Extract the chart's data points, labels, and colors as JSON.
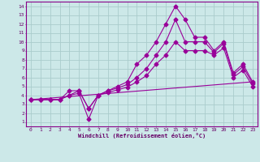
{
  "xlabel": "Windchill (Refroidissement éolien,°C)",
  "ylabel": "",
  "bg_color": "#cce8e8",
  "grid_color": "#aacccc",
  "line_color": "#990099",
  "xlim": [
    -0.5,
    23.5
  ],
  "ylim": [
    0.5,
    14.5
  ],
  "xticks": [
    0,
    1,
    2,
    3,
    4,
    5,
    6,
    7,
    8,
    9,
    10,
    11,
    12,
    13,
    14,
    15,
    16,
    17,
    18,
    19,
    20,
    21,
    22,
    23
  ],
  "yticks": [
    1,
    2,
    3,
    4,
    5,
    6,
    7,
    8,
    9,
    10,
    11,
    12,
    13,
    14
  ],
  "line1_x": [
    0,
    1,
    2,
    3,
    4,
    5,
    6,
    7,
    8,
    9,
    10,
    11,
    12,
    13,
    14,
    15,
    16,
    17,
    18,
    19,
    20,
    21,
    22,
    23
  ],
  "line1_y": [
    3.5,
    3.5,
    3.5,
    3.5,
    4.5,
    4.5,
    2.5,
    4.0,
    4.5,
    5.0,
    5.5,
    7.5,
    8.5,
    10.0,
    12.0,
    14.0,
    12.5,
    10.5,
    10.5,
    9.0,
    10.0,
    6.5,
    7.5,
    5.5
  ],
  "line2_x": [
    0,
    1,
    2,
    3,
    4,
    5,
    6,
    7,
    8,
    9,
    10,
    11,
    12,
    13,
    14,
    15,
    16,
    17,
    18,
    19,
    20,
    21,
    22,
    23
  ],
  "line2_y": [
    3.5,
    3.5,
    3.5,
    3.5,
    4.0,
    4.5,
    2.5,
    4.0,
    4.5,
    4.8,
    5.2,
    6.0,
    7.0,
    8.5,
    10.0,
    12.5,
    10.0,
    10.0,
    10.0,
    8.8,
    9.8,
    6.3,
    7.2,
    5.3
  ],
  "line3_x": [
    0,
    1,
    2,
    3,
    4,
    5,
    6,
    7,
    8,
    9,
    10,
    11,
    12,
    13,
    14,
    15,
    16,
    17,
    18,
    19,
    20,
    21,
    22,
    23
  ],
  "line3_y": [
    3.5,
    3.5,
    3.5,
    3.5,
    4.0,
    4.2,
    1.3,
    4.0,
    4.3,
    4.6,
    4.9,
    5.5,
    6.2,
    7.5,
    8.5,
    10.0,
    9.0,
    9.0,
    9.0,
    8.5,
    9.3,
    6.0,
    6.8,
    5.0
  ],
  "line4_x": [
    0,
    23
  ],
  "line4_y": [
    3.5,
    5.5
  ],
  "marker": "D",
  "markersize": 2.5,
  "linewidth": 0.8
}
